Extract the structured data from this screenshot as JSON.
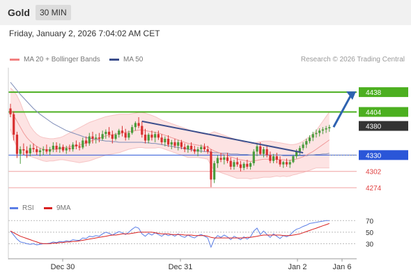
{
  "header": {
    "symbol": "Gold",
    "timeframe": "30 MIN"
  },
  "datetime": "Friday, January 2, 2026 7:04:02 AM CET",
  "legend": {
    "ma20_label": "MA 20 + Bollinger Bands",
    "ma50_label": "MA 50",
    "copyright": "Research © 2026 Trading Central"
  },
  "rsi_legend": {
    "rsi_label": "RSI",
    "ma_label": "9MA"
  },
  "colors": {
    "up": "#4a9b3c",
    "down": "#d83030",
    "ma20": "#f28080",
    "ma50": "#3b4e8c",
    "band": "#fde3e3",
    "resistance": "#4caf20",
    "support_line": "#2a56d8",
    "support_text": "#e04040",
    "price_label": "#333333",
    "rsi_line": "#5b7ee6",
    "rsi_ma": "#d82020"
  },
  "chart_data": {
    "type": "candlestick",
    "ylim": [
      4255,
      4480
    ],
    "x_ticks": [
      "Dec 30",
      "Dec 31",
      "Jan 2",
      "Jan 6"
    ],
    "levels": [
      {
        "value": 4438,
        "label": "4438",
        "kind": "resistance"
      },
      {
        "value": 4404,
        "label": "4404",
        "kind": "resistance"
      },
      {
        "value": 4380,
        "label": "4380",
        "kind": "current"
      },
      {
        "value": 4330,
        "label": "4330",
        "kind": "pivot"
      },
      {
        "value": 4302,
        "label": "4302",
        "kind": "support"
      },
      {
        "value": 4274,
        "label": "4274",
        "kind": "support"
      }
    ],
    "ohlc": [
      [
        4410,
        4418,
        4395,
        4400
      ],
      [
        4400,
        4405,
        4355,
        4365
      ],
      [
        4365,
        4370,
        4325,
        4332
      ],
      [
        4332,
        4345,
        4315,
        4340
      ],
      [
        4340,
        4350,
        4330,
        4338
      ],
      [
        4338,
        4345,
        4325,
        4333
      ],
      [
        4333,
        4348,
        4328,
        4342
      ],
      [
        4342,
        4350,
        4335,
        4340
      ],
      [
        4340,
        4345,
        4330,
        4335
      ],
      [
        4335,
        4342,
        4328,
        4338
      ],
      [
        4338,
        4345,
        4330,
        4340
      ],
      [
        4340,
        4348,
        4332,
        4336
      ],
      [
        4336,
        4344,
        4330,
        4340
      ],
      [
        4340,
        4352,
        4335,
        4346
      ],
      [
        4346,
        4352,
        4335,
        4340
      ],
      [
        4340,
        4350,
        4334,
        4344
      ],
      [
        4344,
        4348,
        4335,
        4338
      ],
      [
        4338,
        4346,
        4332,
        4342
      ],
      [
        4342,
        4348,
        4336,
        4340
      ],
      [
        4340,
        4352,
        4336,
        4348
      ],
      [
        4348,
        4355,
        4340,
        4345
      ],
      [
        4345,
        4352,
        4338,
        4343
      ],
      [
        4343,
        4360,
        4340,
        4355
      ],
      [
        4355,
        4362,
        4345,
        4350
      ],
      [
        4350,
        4368,
        4346,
        4362
      ],
      [
        4362,
        4370,
        4350,
        4358
      ],
      [
        4358,
        4366,
        4350,
        4360
      ],
      [
        4360,
        4368,
        4352,
        4358
      ],
      [
        4358,
        4372,
        4355,
        4366
      ],
      [
        4366,
        4374,
        4358,
        4370
      ],
      [
        4370,
        4378,
        4360,
        4365
      ],
      [
        4365,
        4372,
        4350,
        4358
      ],
      [
        4358,
        4368,
        4355,
        4365
      ],
      [
        4365,
        4375,
        4360,
        4372
      ],
      [
        4372,
        4380,
        4362,
        4368
      ],
      [
        4368,
        4375,
        4355,
        4360
      ],
      [
        4360,
        4372,
        4356,
        4368
      ],
      [
        4368,
        4382,
        4365,
        4378
      ],
      [
        4378,
        4388,
        4372,
        4385
      ],
      [
        4385,
        4395,
        4376,
        4380
      ],
      [
        4380,
        4388,
        4360,
        4365
      ],
      [
        4365,
        4375,
        4350,
        4355
      ],
      [
        4355,
        4368,
        4350,
        4365
      ],
      [
        4365,
        4372,
        4355,
        4360
      ],
      [
        4360,
        4370,
        4352,
        4366
      ],
      [
        4366,
        4372,
        4356,
        4360
      ],
      [
        4360,
        4366,
        4348,
        4352
      ],
      [
        4352,
        4362,
        4345,
        4358
      ],
      [
        4358,
        4364,
        4344,
        4348
      ],
      [
        4348,
        4356,
        4340,
        4352
      ],
      [
        4352,
        4358,
        4342,
        4346
      ],
      [
        4346,
        4356,
        4338,
        4352
      ],
      [
        4352,
        4356,
        4340,
        4344
      ],
      [
        4344,
        4350,
        4335,
        4340
      ],
      [
        4340,
        4348,
        4334,
        4346
      ],
      [
        4346,
        4352,
        4336,
        4340
      ],
      [
        4340,
        4346,
        4332,
        4336
      ],
      [
        4336,
        4344,
        4328,
        4340
      ],
      [
        4340,
        4348,
        4334,
        4344
      ],
      [
        4344,
        4350,
        4336,
        4340
      ],
      [
        4340,
        4346,
        4332,
        4336
      ],
      [
        4336,
        4340,
        4275,
        4288
      ],
      [
        4288,
        4320,
        4282,
        4316
      ],
      [
        4316,
        4330,
        4308,
        4325
      ],
      [
        4325,
        4334,
        4318,
        4322
      ],
      [
        4322,
        4330,
        4314,
        4326
      ],
      [
        4326,
        4334,
        4316,
        4320
      ],
      [
        4320,
        4326,
        4305,
        4310
      ],
      [
        4310,
        4322,
        4305,
        4318
      ],
      [
        4318,
        4326,
        4310,
        4314
      ],
      [
        4314,
        4320,
        4302,
        4308
      ],
      [
        4308,
        4318,
        4304,
        4315
      ],
      [
        4315,
        4322,
        4306,
        4310
      ],
      [
        4310,
        4318,
        4305,
        4316
      ],
      [
        4316,
        4340,
        4312,
        4336
      ],
      [
        4336,
        4350,
        4328,
        4345
      ],
      [
        4345,
        4352,
        4330,
        4332
      ],
      [
        4332,
        4344,
        4326,
        4340
      ],
      [
        4340,
        4346,
        4326,
        4330
      ],
      [
        4330,
        4336,
        4316,
        4320
      ],
      [
        4320,
        4332,
        4316,
        4328
      ],
      [
        4328,
        4334,
        4316,
        4322
      ],
      [
        4322,
        4328,
        4310,
        4314
      ],
      [
        4314,
        4320,
        4308,
        4318
      ],
      [
        4318,
        4324,
        4310,
        4314
      ],
      [
        4314,
        4322,
        4308,
        4318
      ],
      [
        4318,
        4330,
        4316,
        4328
      ],
      [
        4328,
        4340,
        4324,
        4336
      ],
      [
        4336,
        4346,
        4330,
        4342
      ],
      [
        4342,
        4352,
        4338,
        4348
      ],
      [
        4348,
        4358,
        4342,
        4354
      ],
      [
        4354,
        4364,
        4350,
        4360
      ],
      [
        4360,
        4370,
        4354,
        4366
      ],
      [
        4366,
        4374,
        4360,
        4368
      ],
      [
        4368,
        4376,
        4362,
        4372
      ],
      [
        4372,
        4378,
        4366,
        4374
      ],
      [
        4374,
        4380,
        4368,
        4376
      ],
      [
        4376,
        4382,
        4370,
        4378
      ]
    ],
    "ma20": [
      4410,
      4398,
      4388,
      4378,
      4368,
      4360,
      4354,
      4349,
      4345,
      4342,
      4340,
      4339,
      4339,
      4339,
      4340,
      4341,
      4342,
      4343,
      4344,
      4345,
      4346,
      4347,
      4349,
      4351,
      4353,
      4355,
      4357,
      4359,
      4361,
      4363,
      4364,
      4365,
      4366,
      4367,
      4368,
      4369,
      4370,
      4371,
      4372,
      4373,
      4373,
      4372,
      4371,
      4370,
      4369,
      4368,
      4366,
      4364,
      4362,
      4360,
      4358,
      4356,
      4354,
      4352,
      4350,
      4349,
      4348,
      4347,
      4346,
      4345,
      4344,
      4340,
      4337,
      4335,
      4333,
      4331,
      4329,
      4327,
      4325,
      4323,
      4322,
      4321,
      4320,
      4319,
      4320,
      4321,
      4322,
      4323,
      4323,
      4323,
      4323,
      4323,
      4322,
      4322,
      4321,
      4321,
      4322,
      4323,
      4325,
      4327,
      4330,
      4333,
      4336,
      4340,
      4344,
      4348,
      4352,
      4356
    ],
    "bb_upper": [
      4445,
      4440,
      4432,
      4420,
      4405,
      4392,
      4380,
      4372,
      4366,
      4362,
      4360,
      4359,
      4358,
      4358,
      4359,
      4360,
      4362,
      4365,
      4368,
      4371,
      4374,
      4377,
      4380,
      4383,
      4386,
      4388,
      4390,
      4392,
      4394,
      4396,
      4397,
      4398,
      4399,
      4400,
      4400,
      4400,
      4400,
      4401,
      4402,
      4403,
      4403,
      4402,
      4400,
      4398,
      4396,
      4393,
      4390,
      4388,
      4386,
      4384,
      4382,
      4380,
      4378,
      4376,
      4374,
      4372,
      4370,
      4368,
      4367,
      4366,
      4365,
      4368,
      4370,
      4368,
      4366,
      4364,
      4362,
      4360,
      4358,
      4356,
      4354,
      4352,
      4350,
      4349,
      4350,
      4352,
      4353,
      4354,
      4354,
      4354,
      4353,
      4352,
      4351,
      4350,
      4349,
      4348,
      4348,
      4349,
      4351,
      4354,
      4358,
      4362,
      4366,
      4372,
      4380,
      4388,
      4396,
      4404
    ],
    "bb_lower": [
      4375,
      4356,
      4344,
      4336,
      4331,
      4328,
      4328,
      4326,
      4324,
      4322,
      4320,
      4319,
      4320,
      4320,
      4321,
      4322,
      4322,
      4321,
      4320,
      4319,
      4318,
      4317,
      4318,
      4319,
      4320,
      4322,
      4324,
      4326,
      4328,
      4330,
      4331,
      4332,
      4333,
      4334,
      4336,
      4338,
      4340,
      4341,
      4342,
      4343,
      4343,
      4342,
      4342,
      4342,
      4342,
      4343,
      4342,
      4340,
      4338,
      4336,
      4334,
      4332,
      4330,
      4328,
      4326,
      4326,
      4326,
      4326,
      4325,
      4324,
      4323,
      4312,
      4304,
      4302,
      4300,
      4298,
      4296,
      4294,
      4292,
      4290,
      4290,
      4290,
      4290,
      4289,
      4290,
      4290,
      4291,
      4292,
      4292,
      4292,
      4293,
      4294,
      4293,
      4294,
      4293,
      4294,
      4296,
      4297,
      4299,
      4300,
      4302,
      4304,
      4306,
      4308,
      4308,
      4308,
      4308,
      4308
    ],
    "ma50": [
      4455,
      4448,
      4441,
      4434,
      4428,
      4422,
      4416,
      4410,
      4405,
      4400,
      4396,
      4392,
      4388,
      4384,
      4381,
      4378,
      4375,
      4372,
      4370,
      4368,
      4366,
      4364,
      4362,
      4360,
      4359,
      4358,
      4357,
      4356,
      4355,
      4354,
      4354,
      4353,
      4353,
      4352,
      4352,
      4352,
      4352,
      4352,
      4352,
      4352,
      4352,
      4351,
      4351,
      4350,
      4350,
      4349,
      4348,
      4347,
      4346,
      4345,
      4344,
      4343,
      4342,
      4341,
      4340,
      4339,
      4338,
      4337,
      4337,
      4336,
      4336,
      4335,
      4334,
      4334,
      4333,
      4333,
      4333,
      4332,
      4332,
      4332,
      4331,
      4331,
      4331,
      4330,
      4330,
      4330,
      4330,
      4330,
      4330,
      4330,
      4330,
      4330,
      4330,
      4329,
      4329,
      4329,
      4329,
      4329,
      4329,
      4329,
      4329,
      4330,
      4330,
      4331,
      4331,
      4332,
      4332,
      4333
    ],
    "trendline": {
      "from_index": 40,
      "from_value": 4388,
      "to_index": 89,
      "to_value": 4334
    },
    "forecast_arrow": {
      "from_value": 4378,
      "to_value": 4438
    },
    "rsi": {
      "ylim": [
        10,
        80
      ],
      "levels": [
        70,
        50,
        30
      ],
      "rsi": [
        52,
        45,
        38,
        33,
        32,
        30,
        29,
        30,
        28,
        29,
        30,
        30,
        31,
        33,
        32,
        34,
        33,
        35,
        34,
        37,
        36,
        36,
        40,
        39,
        43,
        42,
        44,
        43,
        47,
        50,
        48,
        45,
        48,
        51,
        49,
        46,
        50,
        55,
        59,
        57,
        47,
        43,
        48,
        45,
        49,
        46,
        43,
        47,
        44,
        46,
        43,
        47,
        43,
        41,
        45,
        42,
        40,
        44,
        46,
        43,
        40,
        24,
        38,
        44,
        41,
        45,
        42,
        37,
        43,
        40,
        37,
        42,
        38,
        42,
        52,
        57,
        46,
        52,
        46,
        41,
        47,
        43,
        39,
        44,
        42,
        45,
        51,
        55,
        57,
        60,
        62,
        65,
        66,
        67,
        68,
        69,
        70,
        70
      ],
      "ma": [
        52,
        49,
        46,
        43,
        41,
        39,
        37,
        35,
        33,
        31,
        30,
        30,
        30,
        31,
        31,
        32,
        32,
        33,
        33,
        34,
        34,
        35,
        36,
        37,
        38,
        39,
        40,
        41,
        42,
        43,
        44,
        45,
        45,
        46,
        47,
        47,
        47,
        48,
        49,
        50,
        50,
        50,
        50,
        50,
        49,
        48,
        47,
        47,
        47,
        46,
        46,
        46,
        46,
        45,
        45,
        45,
        44,
        44,
        44,
        44,
        43,
        41,
        40,
        40,
        40,
        40,
        40,
        40,
        40,
        40,
        40,
        40,
        41,
        41,
        42,
        43,
        44,
        45,
        45,
        45,
        45,
        45,
        45,
        44,
        44,
        44,
        45,
        46,
        47,
        49,
        51,
        53,
        55,
        57,
        59,
        61,
        63,
        65
      ]
    }
  }
}
